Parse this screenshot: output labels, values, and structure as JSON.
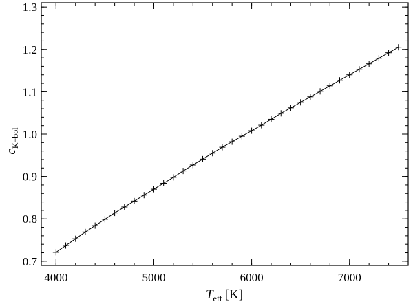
{
  "chart_data": {
    "type": "line",
    "title": "",
    "xlabel": {
      "main": "T",
      "sub": "eff",
      "unit": "[K]"
    },
    "ylabel": {
      "main": "c",
      "sub": "K−bol"
    },
    "xlim": [
      3850,
      7600
    ],
    "ylim": [
      0.69,
      1.31
    ],
    "x_major_ticks": [
      4000,
      5000,
      6000,
      7000
    ],
    "x_tick_labels": [
      "4000",
      "5000",
      "6000",
      "7000"
    ],
    "y_major_ticks": [
      0.7,
      0.8,
      0.9,
      1.0,
      1.1,
      1.2,
      1.3
    ],
    "y_tick_labels": [
      "0.7",
      "0.8",
      "0.9",
      "1.0",
      "1.1",
      "1.2",
      "1.3"
    ],
    "x_minor_step": 200,
    "y_minor_step": 0.02,
    "marker": "plus",
    "line_color": "#000000",
    "grid": false,
    "legend": "none",
    "series": [
      {
        "x": [
          4000,
          4100,
          4200,
          4300,
          4400,
          4500,
          4600,
          4700,
          4800,
          4900,
          5000,
          5100,
          5200,
          5300,
          5400,
          5500,
          5600,
          5700,
          5800,
          5900,
          6000,
          6100,
          6200,
          6300,
          6400,
          6500,
          6600,
          6700,
          6800,
          6900,
          7000,
          7100,
          7200,
          7300,
          7400,
          7500
        ],
        "y": [
          0.721,
          0.737,
          0.753,
          0.769,
          0.784,
          0.799,
          0.814,
          0.828,
          0.842,
          0.856,
          0.87,
          0.884,
          0.898,
          0.913,
          0.927,
          0.941,
          0.955,
          0.969,
          0.982,
          0.995,
          1.008,
          1.021,
          1.035,
          1.049,
          1.062,
          1.075,
          1.088,
          1.101,
          1.114,
          1.127,
          1.14,
          1.153,
          1.166,
          1.179,
          1.192,
          1.205
        ]
      }
    ]
  }
}
